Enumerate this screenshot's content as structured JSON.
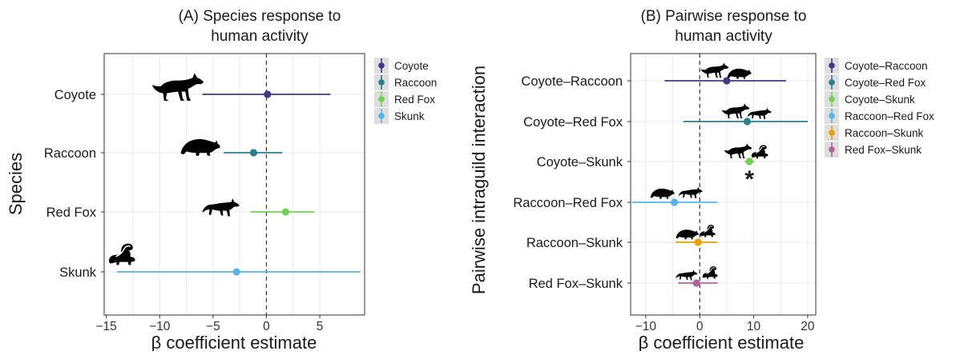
{
  "chart_data": [
    {
      "type": "forest",
      "title": "(A) Species response to\nhuman activity",
      "xlabel": "β coefficient estimate",
      "ylabel": "Species",
      "xlim": [
        -15.2,
        9.2
      ],
      "xticks": [
        -15,
        -10,
        -5,
        0,
        5
      ],
      "xtick_labels": [
        "−15",
        "−10",
        "−5",
        "0",
        "5"
      ],
      "reference_line": 0,
      "grid": true,
      "legend": "right",
      "categories": [
        "Coyote",
        "Raccoon",
        "Red Fox",
        "Skunk"
      ],
      "series": [
        {
          "name": "Coyote",
          "estimate": 0.1,
          "lower": -6.0,
          "upper": 6.0,
          "color": "#453781"
        },
        {
          "name": "Raccoon",
          "estimate": -1.2,
          "lower": -4.0,
          "upper": 1.5,
          "color": "#287d8e"
        },
        {
          "name": "Red Fox",
          "estimate": 1.8,
          "lower": -1.5,
          "upper": 4.5,
          "color": "#74d055"
        },
        {
          "name": "Skunk",
          "estimate": -2.8,
          "lower": -14.0,
          "upper": 8.8,
          "color": "#56b4e9"
        }
      ]
    },
    {
      "type": "forest",
      "title": "(B) Pairwise response to\nhuman activity",
      "xlabel": "β coefficient estimate",
      "ylabel": "Pairwise intraguild interaction",
      "xlim": [
        -12.8,
        21.5
      ],
      "xticks": [
        -10,
        0,
        10,
        20
      ],
      "xtick_labels": [
        "−10",
        "0",
        "10",
        "20"
      ],
      "reference_line": 0,
      "grid": true,
      "legend": "right",
      "categories": [
        "Coyote–Raccoon",
        "Coyote–Red Fox",
        "Coyote–Skunk",
        "Raccoon–Red Fox",
        "Raccoon–Skunk",
        "Red Fox–Skunk"
      ],
      "annotations": [
        {
          "category": "Coyote–Skunk",
          "text": "*"
        }
      ],
      "series": [
        {
          "name": "Coyote–Raccoon",
          "estimate": 5.0,
          "lower": -6.5,
          "upper": 16.0,
          "color": "#453781"
        },
        {
          "name": "Coyote–Red Fox",
          "estimate": 8.8,
          "lower": -3.0,
          "upper": 20.0,
          "color": "#287d8e"
        },
        {
          "name": "Coyote–Skunk",
          "estimate": 9.2,
          "lower": 8.3,
          "upper": 10.1,
          "color": "#74d055"
        },
        {
          "name": "Raccoon–Red Fox",
          "estimate": -4.7,
          "lower": -12.5,
          "upper": 3.3,
          "color": "#56b4e9"
        },
        {
          "name": "Raccoon–Skunk",
          "estimate": -0.3,
          "lower": -4.5,
          "upper": 3.3,
          "color": "#e69f00"
        },
        {
          "name": "Red Fox–Skunk",
          "estimate": -0.6,
          "lower": -4.0,
          "upper": 3.3,
          "color": "#b5629b"
        }
      ]
    }
  ],
  "icons": {
    "A": [
      "coyote-icon",
      "raccoon-icon",
      "red-fox-icon",
      "skunk-icon"
    ],
    "B": [
      [
        "coyote-icon",
        "raccoon-icon"
      ],
      [
        "coyote-icon",
        "red-fox-icon"
      ],
      [
        "coyote-icon",
        "skunk-icon"
      ],
      [
        "raccoon-icon",
        "red-fox-icon"
      ],
      [
        "raccoon-icon",
        "skunk-icon"
      ],
      [
        "red-fox-icon",
        "skunk-icon"
      ]
    ]
  }
}
